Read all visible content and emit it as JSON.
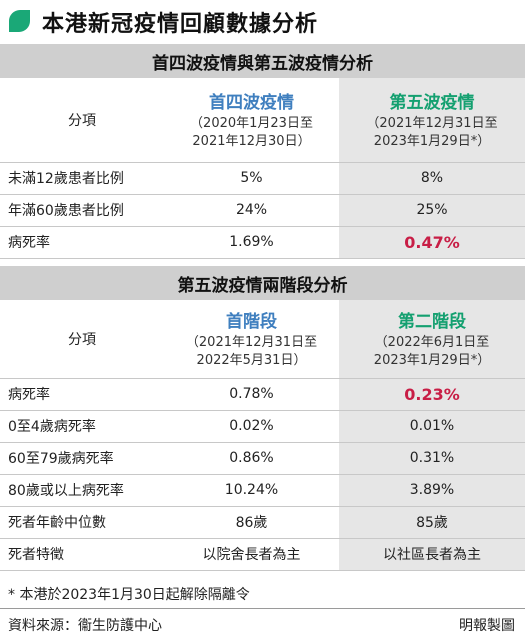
{
  "header": {
    "title": "本港新冠疫情回顧數據分析",
    "icon": "green-leaf-bullet-icon",
    "accent": "#1aa877"
  },
  "section1": {
    "title": "首四波疫情與第五波疫情分析",
    "head": {
      "label": "分項",
      "col1": {
        "name": "首四波疫情",
        "line1": "（2020年1月23日至",
        "line2": "2021年12月30日）"
      },
      "col2": {
        "name": "第五波疫情",
        "line1": "（2021年12月31日至",
        "line2": "2023年1月29日*）"
      }
    },
    "rows": [
      {
        "label": "未滿12歲患者比例",
        "v1": "5%",
        "v2": "8%"
      },
      {
        "label": "年滿60歲患者比例",
        "v1": "24%",
        "v2": "25%"
      },
      {
        "label": "病死率",
        "v1": "1.69%",
        "v2": "0.47%"
      }
    ]
  },
  "section2": {
    "title": "第五波疫情兩階段分析",
    "head": {
      "label": "分項",
      "col1": {
        "name": "首階段",
        "line1": "（2021年12月31日至",
        "line2": "2022年5月31日）"
      },
      "col2": {
        "name": "第二階段",
        "line1": "（2022年6月1日至",
        "line2": "2023年1月29日*）"
      }
    },
    "rows": [
      {
        "label": "病死率",
        "v1": "0.78%",
        "v2": "0.23%"
      },
      {
        "label": "0至4歲病死率",
        "v1": "0.02%",
        "v2": "0.01%"
      },
      {
        "label": "60至79歲病死率",
        "v1": "0.86%",
        "v2": "0.31%"
      },
      {
        "label": "80歲或以上病死率",
        "v1": "10.24%",
        "v2": "3.89%"
      },
      {
        "label": "死者年齡中位數",
        "v1": "86歲",
        "v2": "85歲"
      },
      {
        "label": "死者特徵",
        "v1": "以院舍長者為主",
        "v2": "以社區長者為主"
      }
    ]
  },
  "footnote": "* 本港於2023年1月30日起解除隔離令",
  "source": "資料來源：衞生防護中心",
  "credit": "明報製圖",
  "colors": {
    "highlight": "#c81e46",
    "col1_title": "#3f7fbf",
    "col2_title": "#14a070",
    "section_bg": "#cfcfcf",
    "col2_bg": "#e6e6e6"
  }
}
